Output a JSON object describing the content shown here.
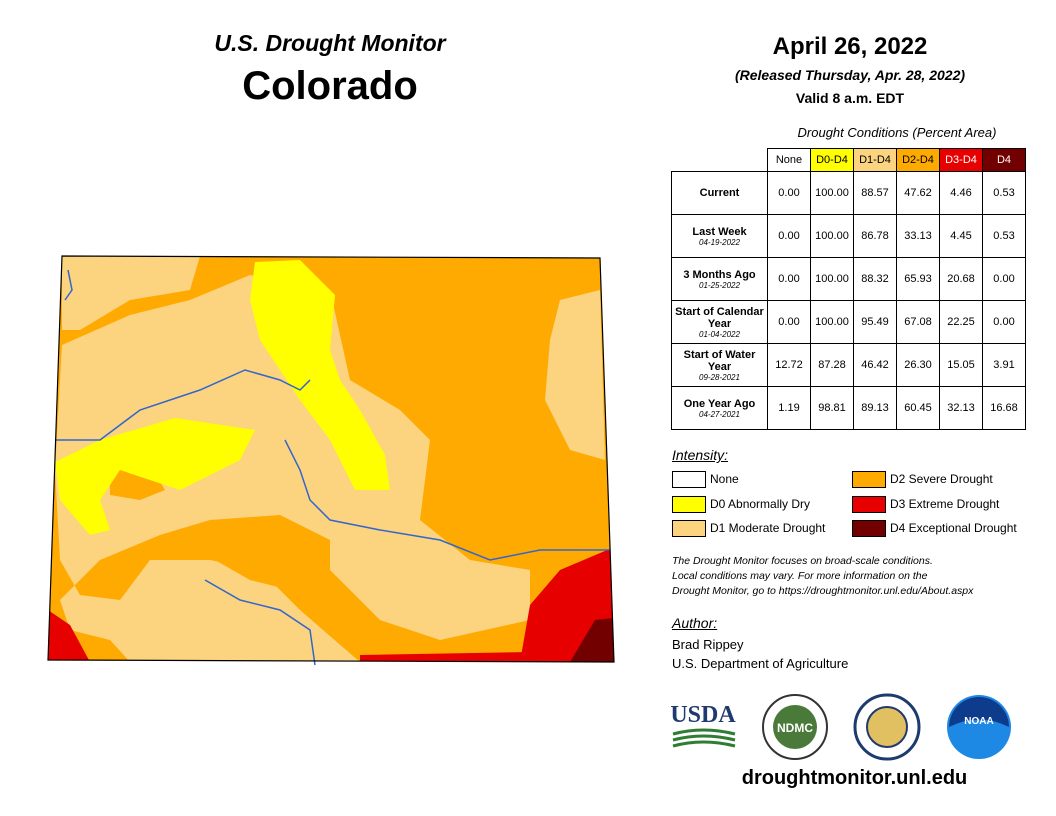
{
  "header": {
    "title": "U.S. Drought Monitor",
    "state": "Colorado"
  },
  "date": {
    "title": "April 26, 2022",
    "released": "(Released Thursday, Apr. 28, 2022)",
    "valid": "Valid 8 a.m. EDT"
  },
  "table": {
    "caption": "Drought Conditions (Percent Area)",
    "columns": [
      {
        "label": "None",
        "color": "#ffffff",
        "text_color": "#000000"
      },
      {
        "label": "D0-D4",
        "color": "#ffff00",
        "text_color": "#000000"
      },
      {
        "label": "D1-D4",
        "color": "#fcd37f",
        "text_color": "#000000"
      },
      {
        "label": "D2-D4",
        "color": "#ffaa00",
        "text_color": "#000000"
      },
      {
        "label": "D3-D4",
        "color": "#e60000",
        "text_color": "#ffffff"
      },
      {
        "label": "D4",
        "color": "#730000",
        "text_color": "#ffffff"
      }
    ],
    "rows": [
      {
        "label": "Current",
        "values": [
          "0.00",
          "100.00",
          "88.57",
          "47.62",
          "4.46",
          "0.53"
        ]
      },
      {
        "label": "Last Week",
        "date": "04-19-2022",
        "values": [
          "0.00",
          "100.00",
          "86.78",
          "33.13",
          "4.45",
          "0.53"
        ]
      },
      {
        "label": "3 Months Ago",
        "date": "01-25-2022",
        "values": [
          "0.00",
          "100.00",
          "88.32",
          "65.93",
          "20.68",
          "0.00"
        ]
      },
      {
        "label": "Start of Calendar Year",
        "date": "01-04-2022",
        "values": [
          "0.00",
          "100.00",
          "95.49",
          "67.08",
          "22.25",
          "0.00"
        ]
      },
      {
        "label": "Start of Water Year",
        "date": "09-28-2021",
        "values": [
          "12.72",
          "87.28",
          "46.42",
          "26.30",
          "15.05",
          "3.91"
        ]
      },
      {
        "label": "One Year Ago",
        "date": "04-27-2021",
        "values": [
          "1.19",
          "98.81",
          "89.13",
          "60.45",
          "32.13",
          "16.68"
        ]
      }
    ]
  },
  "legend": {
    "title": "Intensity:",
    "items": [
      {
        "label": "None",
        "color": "#ffffff"
      },
      {
        "label": "D0 Abnormally Dry",
        "color": "#ffff00"
      },
      {
        "label": "D1 Moderate Drought",
        "color": "#fcd37f"
      },
      {
        "label": "D2 Severe Drought",
        "color": "#ffaa00"
      },
      {
        "label": "D3 Extreme Drought",
        "color": "#e60000"
      },
      {
        "label": "D4 Exceptional Drought",
        "color": "#730000"
      }
    ]
  },
  "note": [
    "The Drought Monitor focuses on broad-scale conditions.",
    "Local conditions may vary. For more information on the",
    "Drought Monitor, go to https://droughtmonitor.unl.edu/About.aspx"
  ],
  "author": {
    "title": "Author:",
    "name": "Brad Rippey",
    "org": "U.S. Department of Agriculture"
  },
  "logos": {
    "usda": "USDA",
    "ndmc": "NDMC",
    "noaa": "NOAA"
  },
  "url": "droughtmonitor.unl.edu"
}
